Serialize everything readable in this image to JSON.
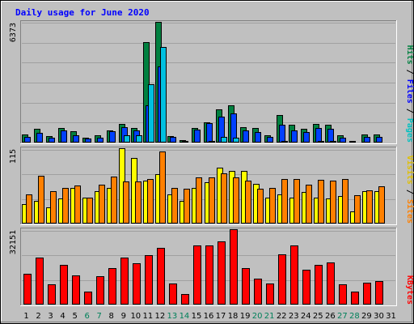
{
  "chart_data": {
    "type": "bar",
    "title": "Daily usage for June 2020",
    "categories": [
      "1",
      "2",
      "3",
      "4",
      "5",
      "6",
      "7",
      "8",
      "9",
      "10",
      "11",
      "12",
      "13",
      "14",
      "15",
      "16",
      "17",
      "18",
      "19",
      "20",
      "21",
      "22",
      "23",
      "24",
      "25",
      "26",
      "27",
      "28",
      "29",
      "30",
      "31"
    ],
    "weekend_days": [
      "6",
      "7",
      "13",
      "14",
      "20",
      "21",
      "27",
      "28"
    ],
    "panels": [
      {
        "id": "hits",
        "max_label": "6373",
        "ylim": [
          0,
          6373
        ],
        "right_labels": [
          {
            "text": "Hits",
            "color": "#008040"
          },
          {
            "text": " / ",
            "color": "#000000"
          },
          {
            "text": "Files",
            "color": "#0000ff"
          },
          {
            "text": " / ",
            "color": "#000000"
          },
          {
            "text": "Pages",
            "color": "#00c0c0"
          }
        ],
        "series": [
          {
            "name": "Hits",
            "color": "#008040",
            "values": [
              420,
              720,
              340,
              790,
              580,
              270,
              370,
              640,
              970,
              760,
              5300,
              6373,
              330,
              140,
              780,
              1050,
              1750,
              1970,
              830,
              760,
              390,
              1450,
              940,
              740,
              970,
              960,
              370,
              80,
              440,
              420,
              0
            ]
          },
          {
            "name": "Files",
            "color": "#0040ff",
            "values": [
              300,
              530,
              240,
              660,
              400,
              200,
              250,
              600,
              800,
              660,
              1950,
              4000,
              280,
              100,
              680,
              1030,
              1380,
              1540,
              640,
              560,
              320,
              960,
              660,
              560,
              770,
              730,
              270,
              60,
              320,
              320,
              0
            ]
          },
          {
            "name": "Pages",
            "color": "#00c0e0",
            "values": [
              40,
              30,
              30,
              40,
              40,
              25,
              30,
              60,
              400,
              380,
              3100,
              5050,
              40,
              20,
              60,
              70,
              300,
              240,
              50,
              50,
              30,
              100,
              60,
              60,
              80,
              70,
              20,
              10,
              20,
              30,
              0
            ]
          }
        ]
      },
      {
        "id": "visits",
        "max_label": "115",
        "ylim": [
          0,
          115
        ],
        "right_labels": [
          {
            "text": "Visits",
            "color": "#e0c000"
          },
          {
            "text": " / ",
            "color": "#000000"
          },
          {
            "text": "Sites",
            "color": "#ff8000"
          }
        ],
        "series": [
          {
            "name": "Visits",
            "color": "#ffff00",
            "values": [
              30,
              35,
              25,
              38,
              55,
              40,
              50,
              55,
              115,
              100,
              65,
              75,
              45,
              35,
              55,
              63,
              85,
              80,
              80,
              61,
              39,
              45,
              40,
              48,
              40,
              38,
              42,
              18,
              50,
              50,
              0
            ]
          },
          {
            "name": "Sites",
            "color": "#ff8000",
            "values": [
              45,
              73,
              50,
              54,
              58,
              40,
              59,
              72,
              64,
              64,
              68,
              110,
              55,
              53,
              70,
              70,
              77,
              70,
              66,
              53,
              54,
              68,
              68,
              59,
              67,
              65,
              68,
              43,
              51,
              57,
              0
            ]
          }
        ]
      },
      {
        "id": "kbytes",
        "max_label": "32151",
        "ylim": [
          0,
          32151
        ],
        "right_labels": [
          {
            "text": "KBytes",
            "color": "#ff0000"
          }
        ],
        "series": [
          {
            "name": "KBytes",
            "color": "#ff0000",
            "values": [
              13200,
              20000,
              8700,
              17000,
              12300,
              5500,
              12000,
              15500,
              20000,
              17700,
              21000,
              24200,
              9000,
              4500,
              25200,
              25200,
              26800,
              32151,
              15400,
              11000,
              9000,
              21400,
              25400,
              14700,
              17000,
              18000,
              8700,
              5700,
              9500,
              10100,
              0
            ]
          }
        ]
      }
    ]
  }
}
